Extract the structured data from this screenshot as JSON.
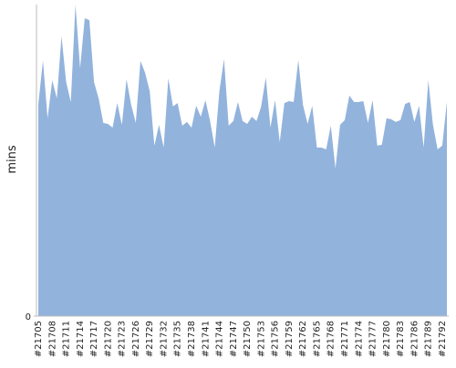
{
  "chart_data": {
    "type": "area",
    "y_label": "mins",
    "categories": [
      "#21705",
      null,
      null,
      "#21708",
      null,
      null,
      "#21711",
      null,
      null,
      "#21714",
      null,
      null,
      "#21717",
      null,
      null,
      "#21720",
      null,
      null,
      "#21723",
      null,
      null,
      "#21726",
      null,
      null,
      "#21729",
      null,
      null,
      "#21732",
      null,
      null,
      "#21735",
      null,
      null,
      "#21738",
      null,
      null,
      "#21741",
      null,
      null,
      "#21744",
      null,
      null,
      "#21747",
      null,
      null,
      "#21750",
      null,
      null,
      "#21753",
      null,
      null,
      "#21756",
      null,
      null,
      "#21759",
      null,
      null,
      "#21762",
      null,
      null,
      "#21765",
      null,
      null,
      "#21768",
      null,
      null,
      "#21771",
      null,
      null,
      "#21774",
      null,
      null,
      "#21777",
      null,
      null,
      "#21780",
      null,
      null,
      "#21783",
      null,
      null,
      "#21786",
      null,
      null,
      "#21789",
      null,
      null,
      "#21792",
      null
    ],
    "values": [
      68,
      82,
      63.5,
      75.7,
      69.9,
      89.8,
      75.1,
      68.7,
      100,
      79.5,
      95.6,
      95,
      75.1,
      69.9,
      62,
      61.7,
      60.5,
      68.4,
      61.4,
      76,
      67.8,
      62,
      81.9,
      78.1,
      72.2,
      54.7,
      61.4,
      54.1,
      76.3,
      67.3,
      68.4,
      61.1,
      62.3,
      60.5,
      67.5,
      64,
      69.3,
      62.6,
      54.1,
      72.2,
      82.5,
      61.1,
      62.6,
      68.7,
      62.6,
      61.7,
      64,
      62.6,
      67.3,
      76.6,
      60.5,
      69.3,
      55.8,
      68.4,
      69,
      68.7,
      82.2,
      67.8,
      61.7,
      67.5,
      54.1,
      54.1,
      53.5,
      61.1,
      47.4,
      61.4,
      62.9,
      70.8,
      68.7,
      68.7,
      69,
      62,
      69.3,
      54.7,
      55,
      63.5,
      63.2,
      62.3,
      62.9,
      68.1,
      68.7,
      62.3,
      67.5,
      54.1,
      75.7,
      61.4,
      53.5,
      54.7,
      68.7
    ],
    "color": "#92b3dc",
    "ylim": [
      0,
      100
    ],
    "yticks": [
      0
    ]
  }
}
